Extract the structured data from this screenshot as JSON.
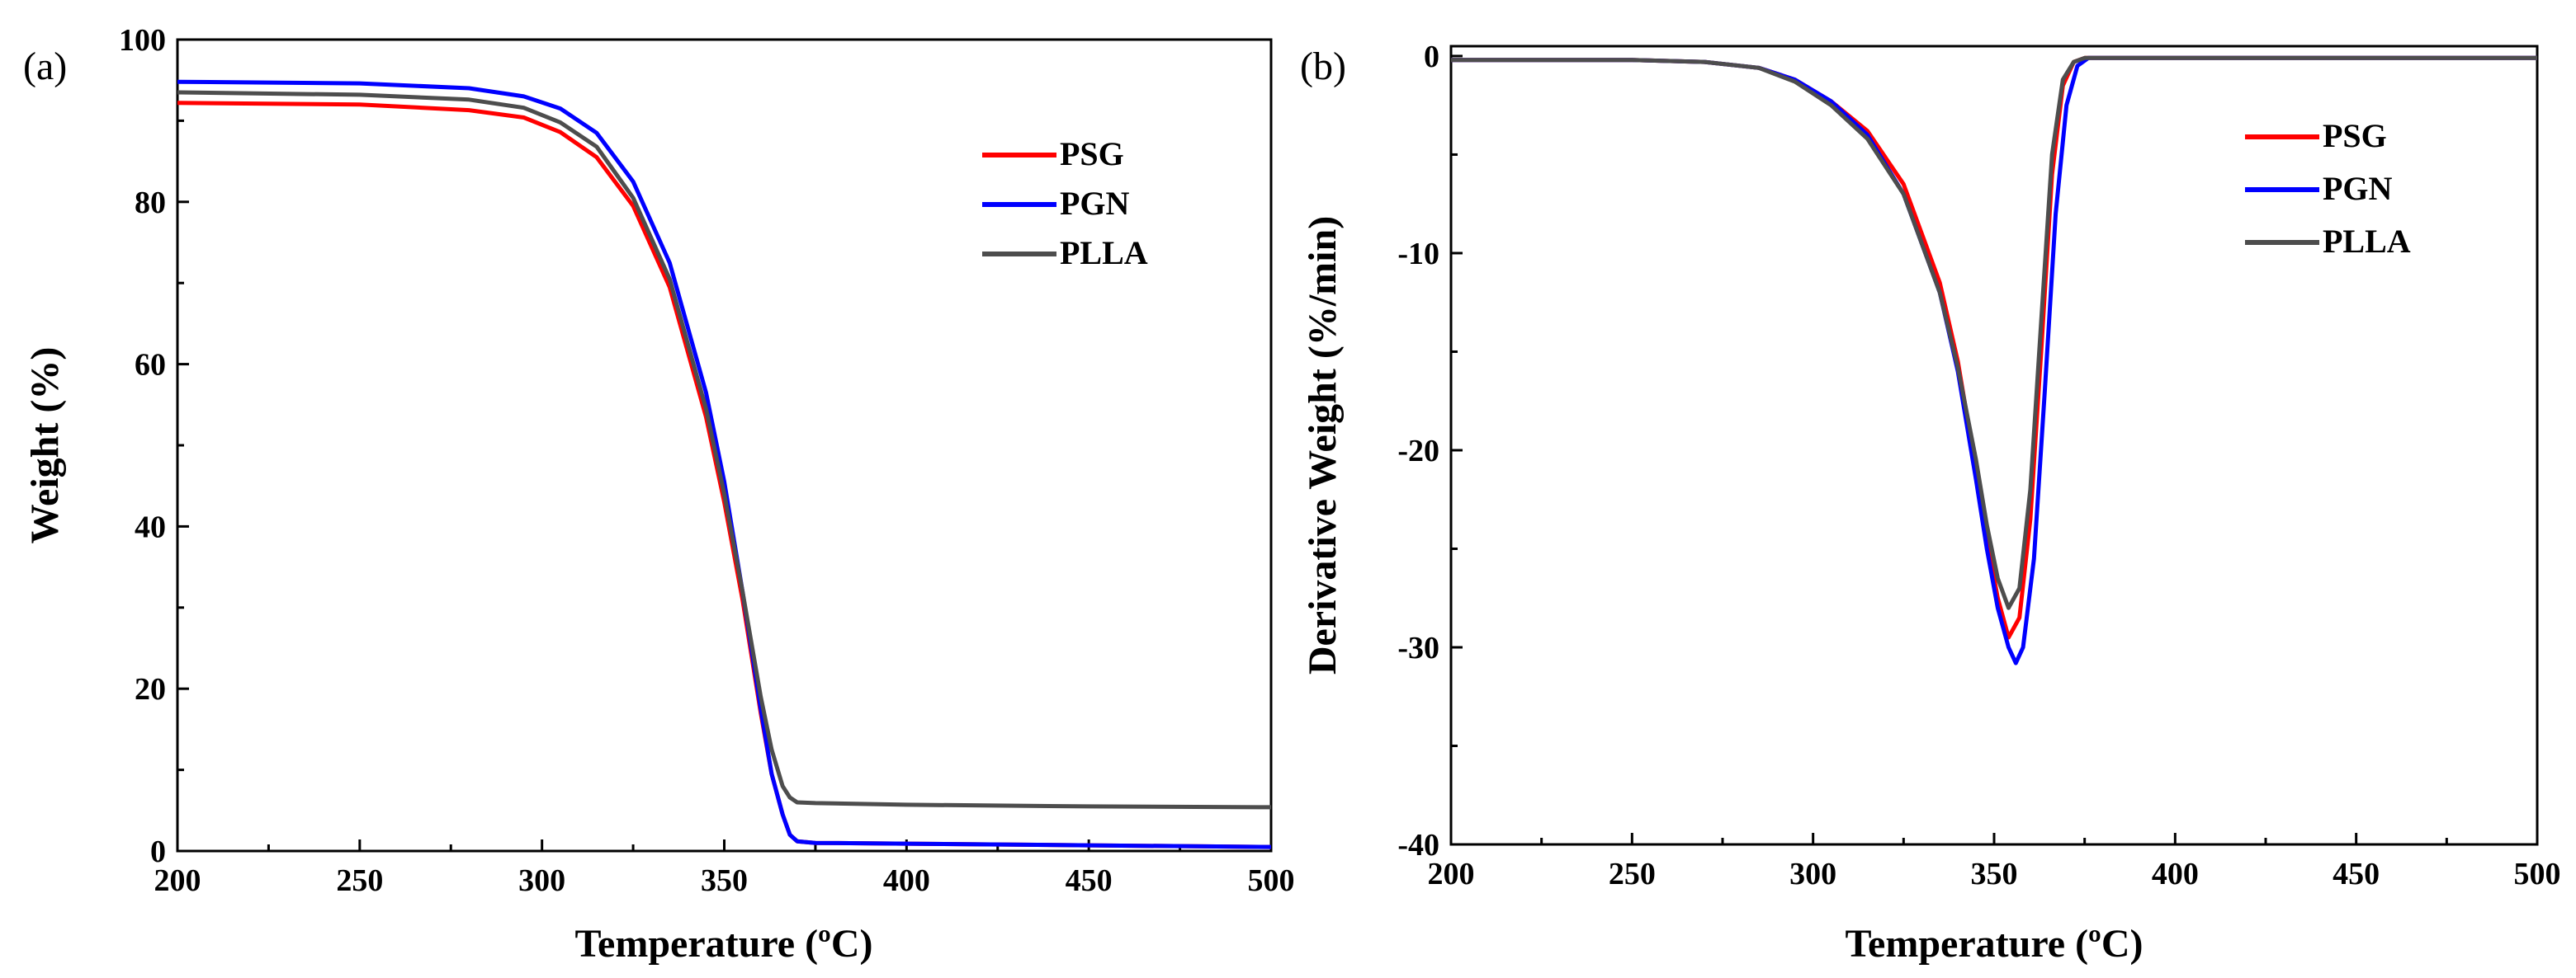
{
  "chart_data": [
    {
      "panel": "(a)",
      "type": "line",
      "title": "",
      "xlabel": "Temperature (ºC)",
      "ylabel": "Weight (%)",
      "xlim": [
        200,
        500
      ],
      "ylim": [
        0,
        100
      ],
      "xticks": [
        200,
        250,
        300,
        350,
        400,
        450,
        500
      ],
      "yticks": [
        0,
        20,
        40,
        60,
        80,
        100
      ],
      "legend_position": "top-right",
      "series": [
        {
          "name": "PSG",
          "color": "#ff0000",
          "x": [
            200,
            250,
            280,
            295,
            305,
            315,
            325,
            335,
            345,
            350,
            355,
            360,
            363,
            366,
            368,
            370,
            375,
            400,
            450,
            500
          ],
          "y": [
            92.2,
            92.0,
            91.3,
            90.4,
            88.6,
            85.5,
            79.5,
            69.5,
            53.5,
            43.0,
            31.0,
            17.0,
            9.5,
            4.5,
            2.0,
            1.2,
            1.0,
            0.9,
            0.7,
            0.5
          ]
        },
        {
          "name": "PGN",
          "color": "#0000ff",
          "x": [
            200,
            250,
            280,
            295,
            305,
            315,
            325,
            335,
            345,
            350,
            355,
            360,
            363,
            366,
            368,
            370,
            375,
            400,
            450,
            500
          ],
          "y": [
            94.8,
            94.6,
            94.0,
            93.0,
            91.5,
            88.5,
            82.5,
            72.5,
            56.5,
            45.5,
            32.0,
            17.5,
            9.5,
            4.5,
            2.0,
            1.2,
            1.0,
            0.9,
            0.7,
            0.5
          ]
        },
        {
          "name": "PLLA",
          "color": "#4d4d4d",
          "x": [
            200,
            250,
            280,
            295,
            305,
            315,
            325,
            335,
            345,
            350,
            355,
            360,
            363,
            366,
            368,
            370,
            375,
            400,
            450,
            500
          ],
          "y": [
            93.5,
            93.2,
            92.6,
            91.6,
            89.8,
            86.8,
            80.5,
            70.5,
            54.5,
            44.0,
            32.0,
            19.0,
            12.5,
            8.0,
            6.6,
            6.0,
            5.9,
            5.7,
            5.5,
            5.4
          ]
        }
      ]
    },
    {
      "panel": "(b)",
      "type": "line",
      "title": "",
      "xlabel": "Temperature (ºC)",
      "ylabel": "Derivative Weight (%/min)",
      "xlim": [
        200,
        500
      ],
      "ylim": [
        -40,
        0.5
      ],
      "xticks": [
        200,
        250,
        300,
        350,
        400,
        450,
        500
      ],
      "yticks": [
        0,
        -10,
        -20,
        -30,
        -40
      ],
      "legend_position": "top-right",
      "series": [
        {
          "name": "PSG",
          "color": "#ff0000",
          "x": [
            200,
            250,
            270,
            285,
            295,
            305,
            315,
            325,
            335,
            340,
            345,
            348,
            351,
            354,
            357,
            360,
            363,
            366,
            369,
            372,
            375,
            400,
            450,
            500
          ],
          "y": [
            -0.2,
            -0.2,
            -0.3,
            -0.6,
            -1.2,
            -2.3,
            -3.8,
            -6.5,
            -11.5,
            -15.5,
            -21.0,
            -24.5,
            -27.5,
            -29.5,
            -28.5,
            -23.5,
            -15.0,
            -6.0,
            -1.5,
            -0.3,
            -0.1,
            -0.1,
            -0.1,
            -0.1
          ]
        },
        {
          "name": "PGN",
          "color": "#0000ff",
          "x": [
            200,
            250,
            270,
            285,
            295,
            305,
            315,
            325,
            335,
            340,
            345,
            348,
            351,
            354,
            356,
            358,
            361,
            364,
            367,
            370,
            373,
            376,
            400,
            450,
            500
          ],
          "y": [
            -0.2,
            -0.2,
            -0.3,
            -0.6,
            -1.2,
            -2.3,
            -4.0,
            -7.0,
            -12.0,
            -16.0,
            -21.5,
            -25.0,
            -28.0,
            -30.0,
            -30.8,
            -30.0,
            -25.5,
            -17.0,
            -8.0,
            -2.5,
            -0.5,
            -0.1,
            -0.1,
            -0.1,
            -0.1
          ]
        },
        {
          "name": "PLLA",
          "color": "#4d4d4d",
          "x": [
            200,
            250,
            270,
            285,
            295,
            305,
            315,
            325,
            335,
            340,
            345,
            348,
            351,
            354,
            357,
            360,
            363,
            366,
            369,
            372,
            375,
            400,
            450,
            500
          ],
          "y": [
            -0.2,
            -0.2,
            -0.3,
            -0.6,
            -1.3,
            -2.5,
            -4.2,
            -7.0,
            -12.0,
            -15.8,
            -20.5,
            -23.8,
            -26.5,
            -28.0,
            -27.0,
            -22.0,
            -13.5,
            -5.0,
            -1.2,
            -0.3,
            -0.1,
            -0.1,
            -0.1,
            -0.1
          ]
        }
      ]
    }
  ]
}
